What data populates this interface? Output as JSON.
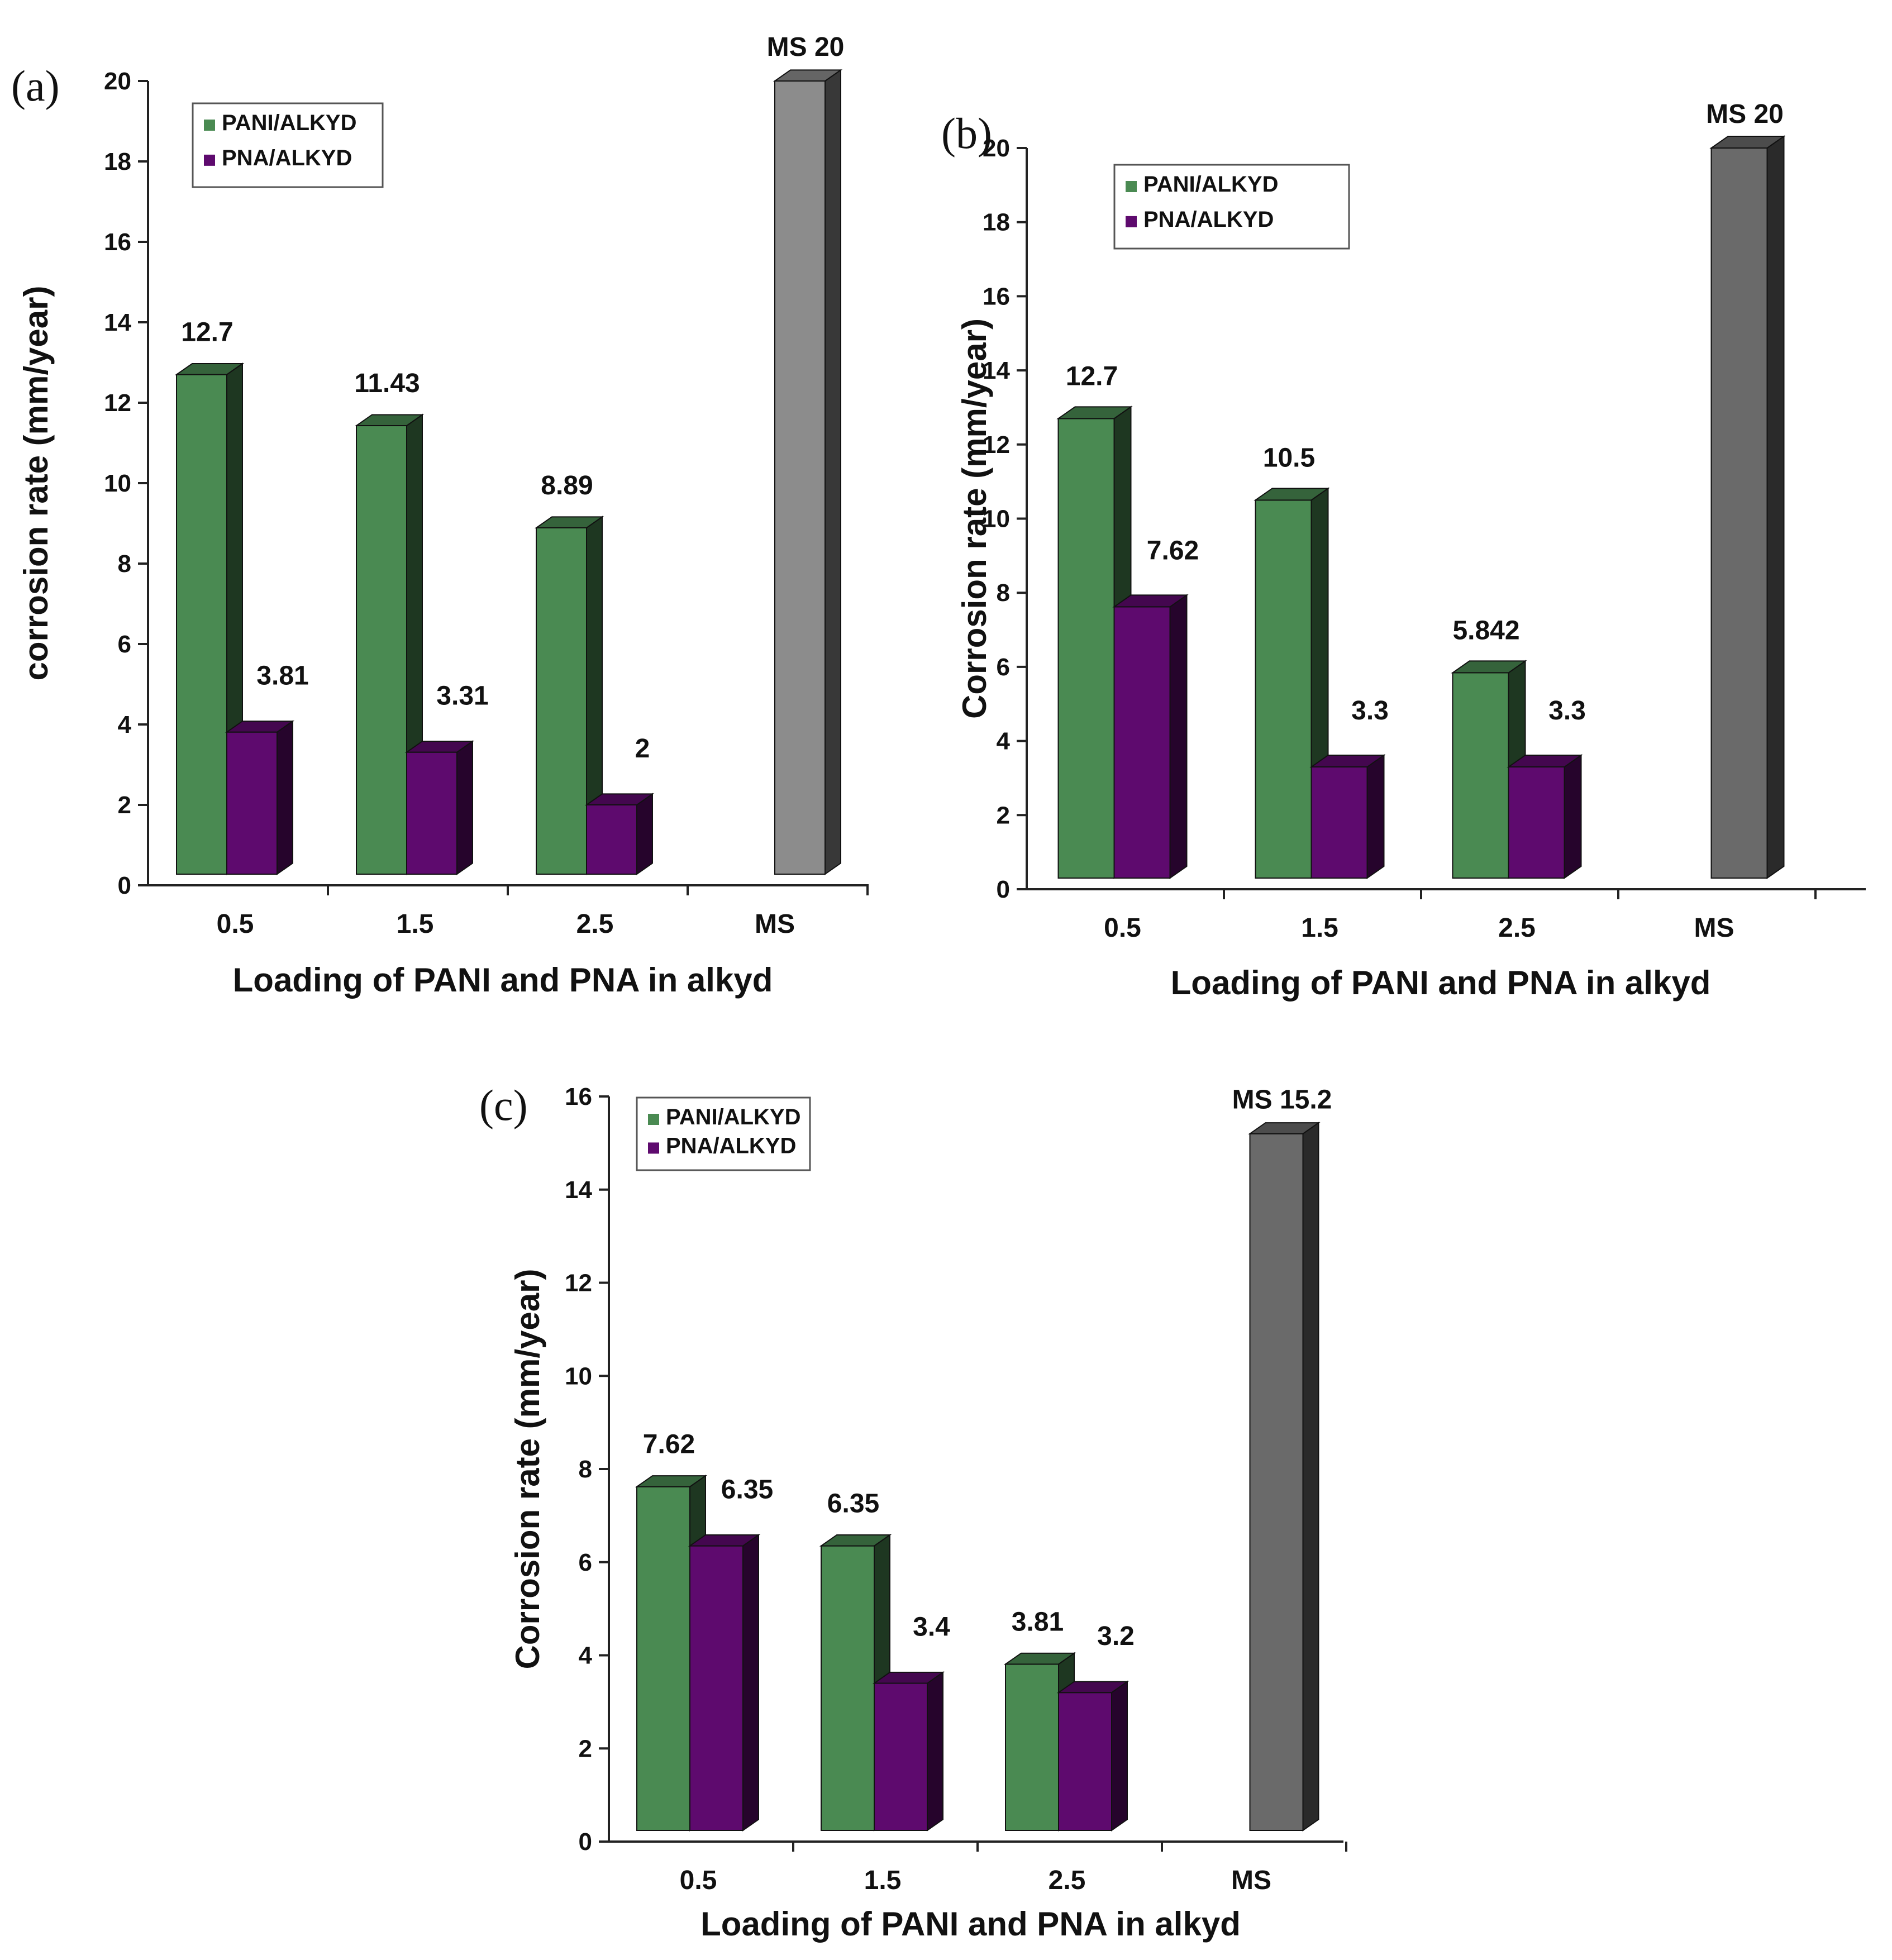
{
  "chart_data": [
    {
      "panel": "(a)",
      "type": "bar",
      "categories": [
        "0.5",
        "1.5",
        "2.5",
        "MS"
      ],
      "series": [
        {
          "name": "PANI/ALKYD",
          "color": "#4a8a52",
          "values": [
            12.7,
            11.43,
            8.89,
            null
          ],
          "labels": [
            "12.7",
            "11.43",
            "8.89",
            null
          ]
        },
        {
          "name": "PNA/ALKYD",
          "color": "#5e0a6e",
          "values": [
            3.81,
            3.31,
            2,
            null
          ],
          "labels": [
            "3.81",
            "3.31",
            "2",
            null
          ]
        },
        {
          "name": "MS",
          "color": "#8c8c8c",
          "values": [
            null,
            null,
            null,
            20
          ],
          "labels": [
            null,
            null,
            null,
            "MS 20"
          ]
        }
      ],
      "ylabel": "corrosion rate (mm/year)",
      "xlabel": "Loading of PANI and PNA in alkyd",
      "ylim": [
        0,
        20
      ],
      "yticks": [
        "0",
        "2",
        "4",
        "6",
        "8",
        "10",
        "12",
        "14",
        "16",
        "18",
        "20"
      ],
      "legend": [
        "PANI/ALKYD",
        "PNA/ALKYD"
      ],
      "legend_position": "top-left"
    },
    {
      "panel": "(b)",
      "type": "bar",
      "categories": [
        "0.5",
        "1.5",
        "2.5",
        "MS"
      ],
      "series": [
        {
          "name": "PANI/ALKYD",
          "color": "#4a8a52",
          "values": [
            12.7,
            10.5,
            5.842,
            null
          ],
          "labels": [
            "12.7",
            "10.5",
            "5.842",
            null
          ]
        },
        {
          "name": "PNA/ALKYD",
          "color": "#5e0a6e",
          "values": [
            7.62,
            3.3,
            3.3,
            null
          ],
          "labels": [
            "7.62",
            "3.3",
            "3.3",
            null
          ]
        },
        {
          "name": "MS",
          "color": "#6a6a6a",
          "values": [
            null,
            null,
            null,
            20
          ],
          "labels": [
            null,
            null,
            null,
            "MS 20"
          ]
        }
      ],
      "ylabel": "Corrosion rate (mm/year)",
      "xlabel": "Loading of PANI and PNA in alkyd",
      "ylim": [
        0,
        20
      ],
      "yticks": [
        "0",
        "2",
        "4",
        "6",
        "8",
        "10",
        "12",
        "14",
        "16",
        "18",
        "20"
      ],
      "legend": [
        "PANI/ALKYD",
        "PNA/ALKYD"
      ],
      "legend_position": "top-left"
    },
    {
      "panel": "(c)",
      "type": "bar",
      "categories": [
        "0.5",
        "1.5",
        "2.5",
        "MS"
      ],
      "series": [
        {
          "name": "PANI/ALKYD",
          "color": "#4a8a52",
          "values": [
            7.62,
            6.35,
            3.81,
            null
          ],
          "labels": [
            "7.62",
            "6.35",
            "3.81",
            null
          ]
        },
        {
          "name": "PNA/ALKYD",
          "color": "#5e0a6e",
          "values": [
            6.35,
            3.4,
            3.2,
            null
          ],
          "labels": [
            "6.35",
            "3.4",
            "3.2",
            null
          ]
        },
        {
          "name": "MS",
          "color": "#6a6a6a",
          "values": [
            null,
            null,
            null,
            15.2
          ],
          "labels": [
            null,
            null,
            null,
            "MS 15.2"
          ]
        }
      ],
      "ylabel": "Corrosion rate (mm/year)",
      "xlabel": "Loading of PANI and PNA in alkyd",
      "ylim": [
        0,
        16
      ],
      "yticks": [
        "0",
        "2",
        "4",
        "6",
        "8",
        "10",
        "12",
        "14",
        "16"
      ],
      "legend": [
        "PANI/ALKYD",
        "PNA/ALKYD"
      ],
      "legend_position": "top-left"
    }
  ]
}
